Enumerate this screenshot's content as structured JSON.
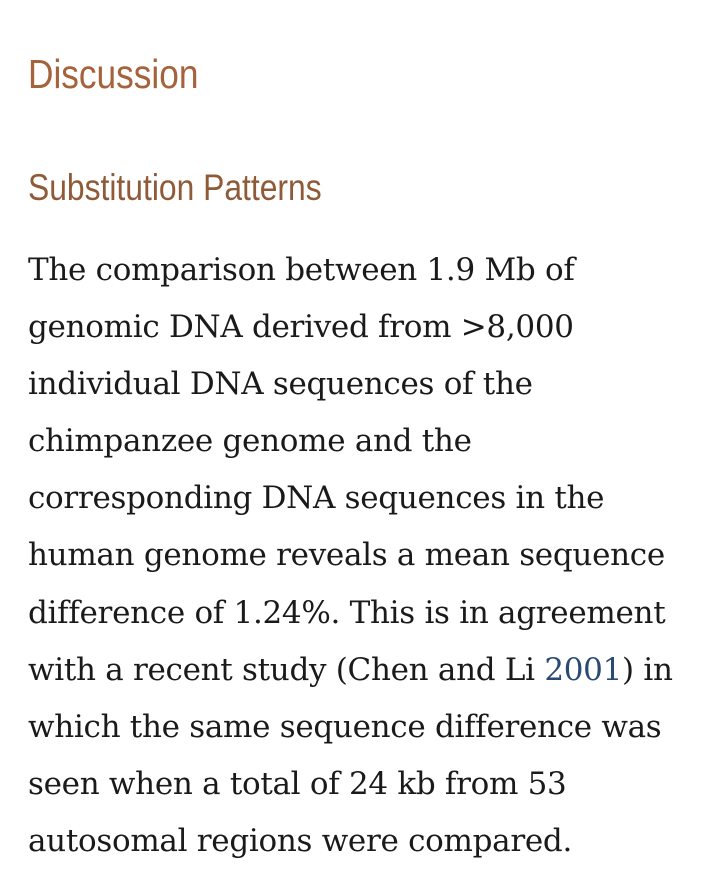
{
  "headings": {
    "section": "Discussion",
    "subsection": "Substitution Patterns"
  },
  "paragraph": {
    "lines": [
      "The comparison between 1.9 Mb of",
      "genomic DNA derived from >8,000",
      "individual DNA sequences of the",
      "chimpanzee genome and the",
      "corresponding DNA sequences in the",
      "human genome reveals a mean sequence",
      "difference of 1.24%. This is in agreement"
    ],
    "line8_before": "with a recent study (Chen and Li ",
    "line8_link": "2001",
    "line8_after": ") in",
    "lines_end": [
      "which the same sequence difference was",
      "seen when a total of 24 kb from 53",
      "autosomal regions were compared."
    ]
  },
  "colors": {
    "heading": "#a5623b",
    "subheading": "#8f5a37",
    "link": "#2b4a73",
    "text": "#1a1a1a"
  }
}
